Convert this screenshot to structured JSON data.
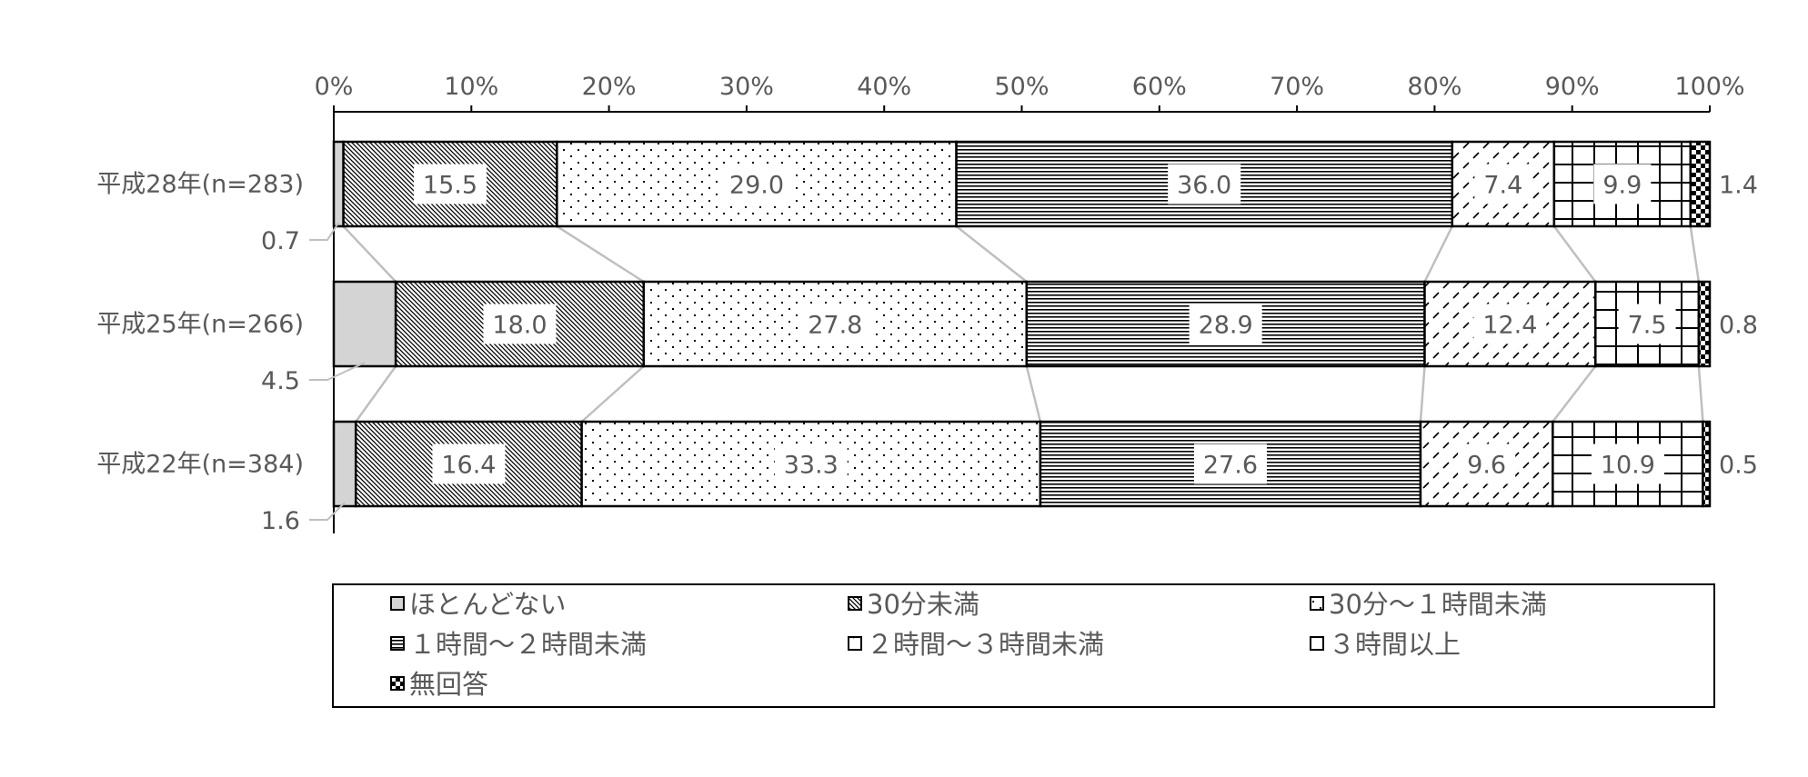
{
  "chart_data": {
    "type": "bar",
    "orientation": "horizontal",
    "stacked": "percent",
    "title": "",
    "xlabel": "",
    "ylabel": "",
    "xlim": [
      0,
      100
    ],
    "x_ticks": [
      "0%",
      "10%",
      "20%",
      "30%",
      "40%",
      "50%",
      "60%",
      "70%",
      "80%",
      "90%",
      "100%"
    ],
    "categories": [
      "平成28年(n=283)",
      "平成25年(n=266)",
      "平成22年(n=384)"
    ],
    "series": [
      {
        "name": "ほとんどない",
        "pattern": "solid-gray",
        "values": [
          0.7,
          4.5,
          1.6
        ],
        "labels": [
          "0.7",
          "4.5",
          "1.6"
        ],
        "label_position": "outside-left"
      },
      {
        "name": "30分未満",
        "pattern": "diagonal-dense",
        "values": [
          15.5,
          18.0,
          16.4
        ],
        "labels": [
          "15.5",
          "18.0",
          "16.4"
        ],
        "label_position": "inside"
      },
      {
        "name": "30分～１時間未満",
        "pattern": "dots",
        "values": [
          29.0,
          27.8,
          33.3
        ],
        "labels": [
          "29.0",
          "27.8",
          "33.3"
        ],
        "label_position": "inside"
      },
      {
        "name": "１時間～２時間未満",
        "pattern": "horizontal-lines",
        "values": [
          36.0,
          28.9,
          27.6
        ],
        "labels": [
          "36.0",
          "28.9",
          "27.6"
        ],
        "label_position": "inside"
      },
      {
        "name": "２時間～３時間未満",
        "pattern": "dashes",
        "values": [
          7.4,
          12.4,
          9.6
        ],
        "labels": [
          "7.4",
          "12.4",
          "9.6"
        ],
        "label_position": "inside"
      },
      {
        "name": "３時間以上",
        "pattern": "grid",
        "values": [
          9.9,
          7.5,
          10.9
        ],
        "labels": [
          "9.9",
          "7.5",
          "10.9"
        ],
        "label_position": "inside"
      },
      {
        "name": "無回答",
        "pattern": "checker",
        "values": [
          1.4,
          0.8,
          0.5
        ],
        "labels": [
          "1.4",
          "0.8",
          "0.5"
        ],
        "label_position": "outside-right"
      }
    ],
    "series_lines": true,
    "grid": false,
    "legend_position": "bottom",
    "legend_columns": 3,
    "colors": {
      "ink": "#000000",
      "text": "#595959",
      "connector": "#bfbfbf",
      "gray_fill": "#d4d4d4"
    }
  }
}
